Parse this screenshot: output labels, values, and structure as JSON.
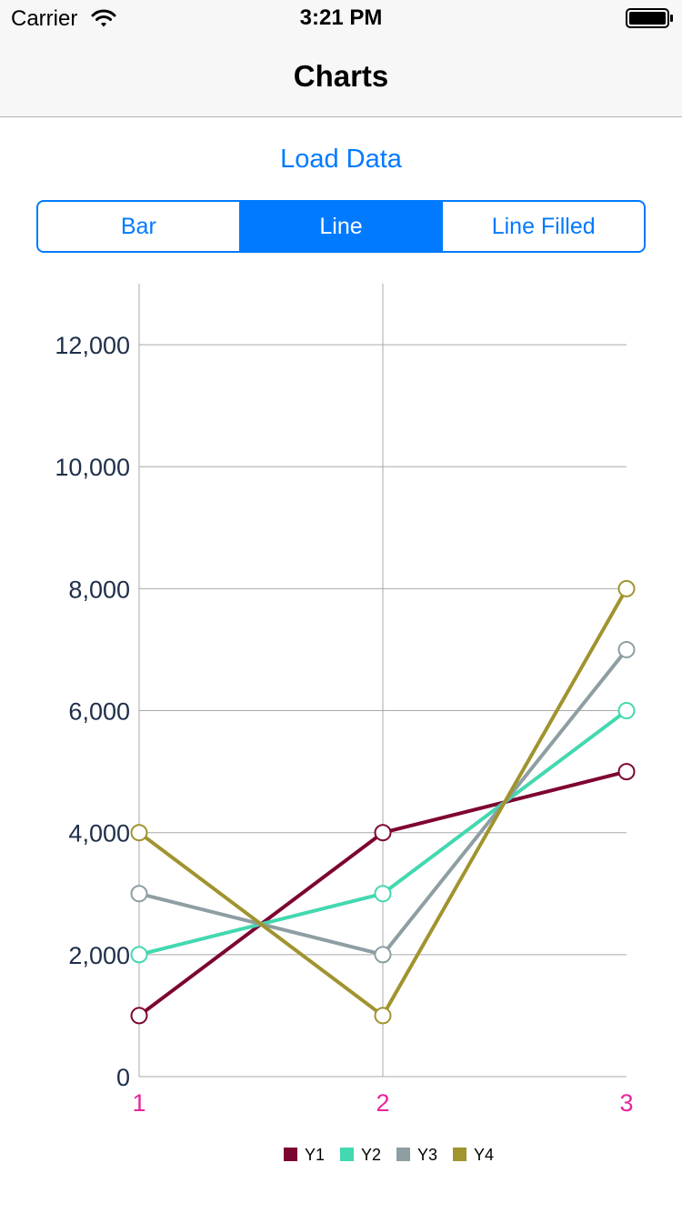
{
  "status_bar": {
    "carrier": "Carrier",
    "time": "3:21 PM",
    "wifi_icon": "wifi-icon",
    "battery_icon": "battery-full-icon"
  },
  "nav": {
    "title": "Charts"
  },
  "load_data_label": "Load Data",
  "segments": [
    {
      "label": "Bar",
      "selected": false
    },
    {
      "label": "Line",
      "selected": true
    },
    {
      "label": "Line Filled",
      "selected": false
    }
  ],
  "colors": {
    "accent": "#007aff",
    "y_tick_text": "#1f2f4a",
    "x_tick_text": "#e6249f",
    "grid": "#a9a9a9"
  },
  "chart_data": {
    "type": "line",
    "x": [
      1,
      2,
      3
    ],
    "x_tick_labels": [
      "1",
      "2",
      "3"
    ],
    "y_tick_labels": [
      "0",
      "2,000",
      "4,000",
      "6,000",
      "8,000",
      "10,000",
      "12,000"
    ],
    "y_ticks": [
      0,
      2000,
      4000,
      6000,
      8000,
      10000,
      12000
    ],
    "ylim": [
      0,
      13000
    ],
    "grid": true,
    "legend_position": "bottom-center",
    "markers": "hollow-circle",
    "series": [
      {
        "name": "Y1",
        "values": [
          1000,
          4000,
          5000
        ],
        "color": "#7d0532"
      },
      {
        "name": "Y2",
        "values": [
          2000,
          3000,
          6000
        ],
        "color": "#43d8b0"
      },
      {
        "name": "Y3",
        "values": [
          3000,
          2000,
          7000
        ],
        "color": "#8e9ea3"
      },
      {
        "name": "Y4",
        "values": [
          4000,
          1000,
          8000
        ],
        "color": "#9f942e"
      }
    ]
  }
}
